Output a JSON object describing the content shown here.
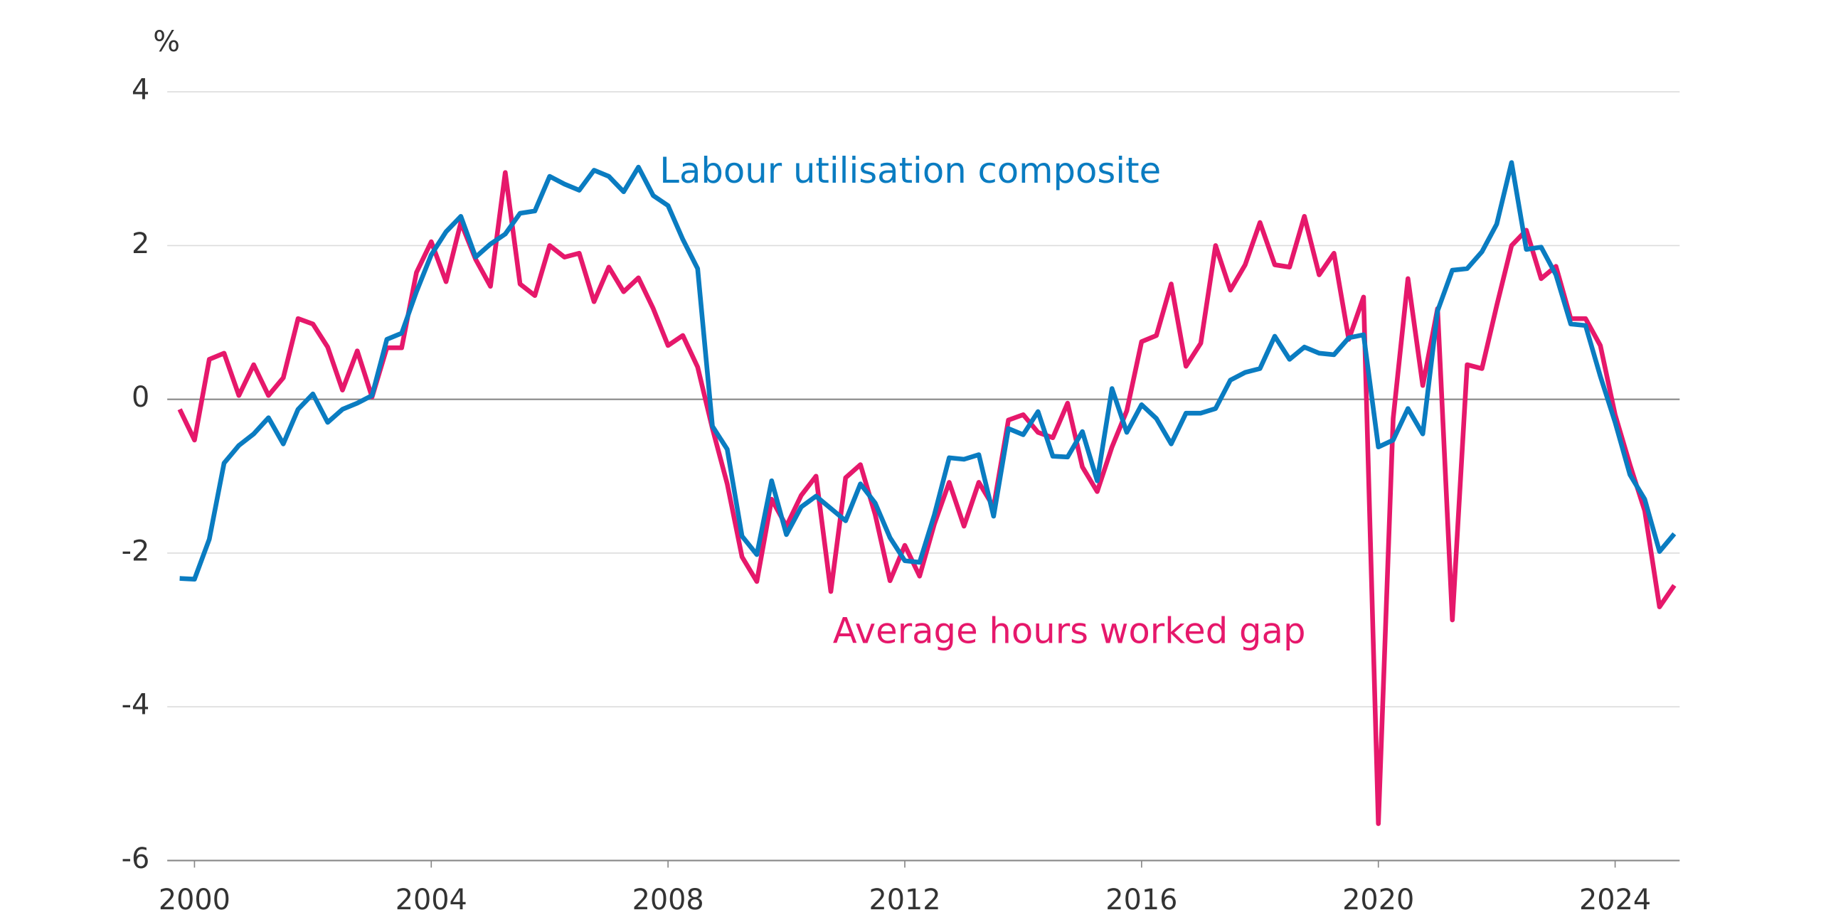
{
  "chart_data": {
    "type": "line",
    "unit_label": "%",
    "x": [
      1999.75,
      2000,
      2000.25,
      2000.5,
      2000.75,
      2001,
      2001.25,
      2001.5,
      2001.75,
      2002,
      2002.25,
      2002.5,
      2002.75,
      2003,
      2003.25,
      2003.5,
      2003.75,
      2004,
      2004.25,
      2004.5,
      2004.75,
      2005,
      2005.25,
      2005.5,
      2005.75,
      2006,
      2006.25,
      2006.5,
      2006.75,
      2007,
      2007.25,
      2007.5,
      2007.75,
      2008,
      2008.25,
      2008.5,
      2008.75,
      2009,
      2009.25,
      2009.5,
      2009.75,
      2010,
      2010.25,
      2010.5,
      2010.75,
      2011,
      2011.25,
      2011.5,
      2011.75,
      2012,
      2012.25,
      2012.5,
      2012.75,
      2013,
      2013.25,
      2013.5,
      2013.75,
      2014,
      2014.25,
      2014.5,
      2014.75,
      2015,
      2015.25,
      2015.5,
      2015.75,
      2016,
      2016.25,
      2016.5,
      2016.75,
      2017,
      2017.25,
      2017.5,
      2017.75,
      2018,
      2018.25,
      2018.5,
      2018.75,
      2019,
      2019.25,
      2019.5,
      2019.75,
      2020,
      2020.25,
      2020.5,
      2020.75,
      2021,
      2021.25,
      2021.5,
      2021.75,
      2022,
      2022.25,
      2022.5,
      2022.75,
      2023,
      2023.25,
      2023.5,
      2023.75,
      2024,
      2024.25,
      2024.5,
      2024.75,
      2025
    ],
    "series": [
      {
        "name": "Labour utilisation composite",
        "color": "#0a7cc1",
        "values": [
          -2.33,
          -2.34,
          -1.82,
          -0.83,
          -0.6,
          -0.45,
          -0.24,
          -0.58,
          -0.13,
          0.07,
          -0.3,
          -0.13,
          -0.05,
          0.05,
          0.78,
          0.86,
          1.4,
          1.88,
          2.18,
          2.38,
          1.85,
          2.02,
          2.15,
          2.42,
          2.45,
          2.9,
          2.8,
          2.72,
          2.98,
          2.9,
          2.7,
          3.02,
          2.65,
          2.52,
          2.08,
          1.7,
          -0.35,
          -0.65,
          -1.78,
          -2.02,
          -1.06,
          -1.76,
          -1.4,
          -1.26,
          -1.42,
          -1.58,
          -1.1,
          -1.35,
          -1.8,
          -2.1,
          -2.12,
          -1.5,
          -0.76,
          -0.78,
          -0.72,
          -1.52,
          -0.38,
          -0.46,
          -0.16,
          -0.74,
          -0.75,
          -0.42,
          -1.06,
          0.14,
          -0.43,
          -0.07,
          -0.25,
          -0.58,
          -0.18,
          -0.18,
          -0.12,
          0.25,
          0.35,
          0.4,
          0.82,
          0.52,
          0.68,
          0.6,
          0.58,
          0.8,
          0.84,
          -0.62,
          -0.53,
          -0.12,
          -0.45,
          1.15,
          1.68,
          1.7,
          1.92,
          2.28,
          3.08,
          1.95,
          1.98,
          1.62,
          0.98,
          0.96,
          0.3,
          -0.3,
          -0.98,
          -1.3,
          -1.98,
          -1.75
        ]
      },
      {
        "name": "Average hours worked gap",
        "color": "#e6186b",
        "values": [
          -0.13,
          -0.53,
          0.52,
          0.6,
          0.05,
          0.45,
          0.05,
          0.28,
          1.05,
          0.98,
          0.68,
          0.12,
          0.63,
          0.03,
          0.67,
          0.67,
          1.65,
          2.05,
          1.53,
          2.3,
          1.82,
          1.47,
          2.95,
          1.5,
          1.35,
          2.0,
          1.85,
          1.9,
          1.27,
          1.72,
          1.4,
          1.58,
          1.18,
          0.7,
          0.83,
          0.42,
          -0.38,
          -1.1,
          -2.05,
          -2.37,
          -1.3,
          -1.65,
          -1.25,
          -1.0,
          -2.5,
          -1.02,
          -0.85,
          -1.5,
          -2.36,
          -1.9,
          -2.3,
          -1.62,
          -1.08,
          -1.65,
          -1.08,
          -1.4,
          -0.27,
          -0.2,
          -0.43,
          -0.5,
          -0.05,
          -0.88,
          -1.2,
          -0.62,
          -0.15,
          0.75,
          0.83,
          1.5,
          0.43,
          0.73,
          2.0,
          1.42,
          1.75,
          2.3,
          1.75,
          1.72,
          2.38,
          1.62,
          1.9,
          0.78,
          1.33,
          -5.52,
          -0.25,
          1.57,
          0.18,
          1.18,
          -2.87,
          0.45,
          0.4,
          1.22,
          2.0,
          2.2,
          1.57,
          1.73,
          1.05,
          1.05,
          0.7,
          -0.2,
          -0.85,
          -1.45,
          -2.7,
          -2.42
        ]
      }
    ],
    "xlim": [
      1999.54,
      2025.09
    ],
    "xticks": [
      2000,
      2004,
      2008,
      2012,
      2016,
      2020,
      2024
    ],
    "ylim": [
      -6,
      4
    ],
    "yticks": [
      -6,
      -4,
      -2,
      0,
      2,
      4
    ],
    "grid": true
  }
}
